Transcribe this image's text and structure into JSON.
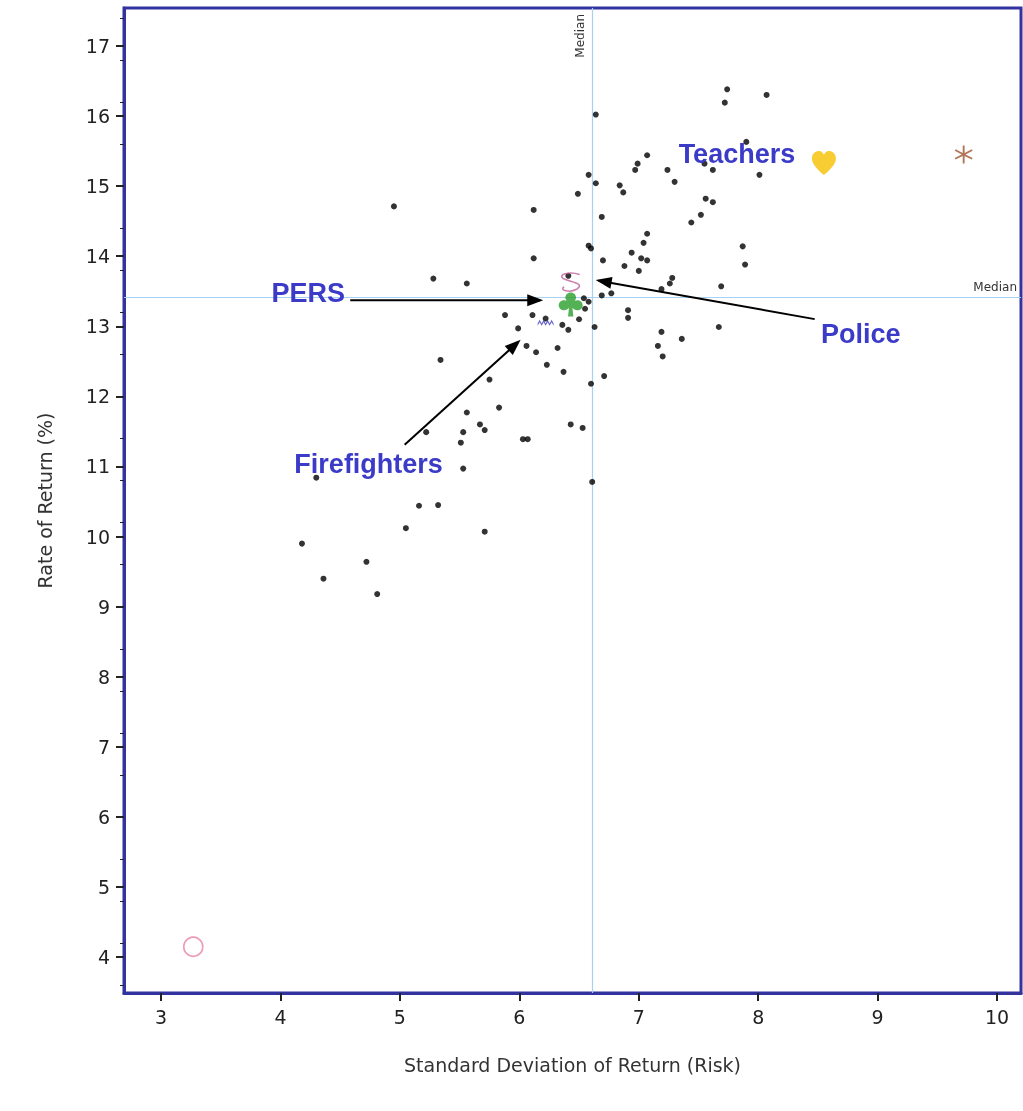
{
  "chart_data": {
    "type": "scatter",
    "xlabel": "Standard Deviation of Return (Risk)",
    "ylabel": "Rate of Return (%)",
    "xlim": [
      2.69,
      10.2
    ],
    "xticks": [
      3,
      4,
      5,
      6,
      7,
      8,
      9,
      10
    ],
    "ylim": [
      3.49,
      17.54
    ],
    "yticks": [
      4,
      5,
      6,
      7,
      8,
      9,
      10,
      11,
      12,
      13,
      14,
      15,
      16,
      17
    ],
    "grid": false,
    "series": [
      {
        "color": "#000000",
        "marker": "circle",
        "x": [
          7.74,
          7.72,
          8.07,
          6.64,
          7.9,
          7.07,
          6.99,
          6.97,
          7.24,
          7.55,
          7.62,
          8.01,
          6.58,
          6.64,
          7.3,
          6.84,
          6.87,
          6.49,
          6.12,
          7.56,
          7.62,
          6.69,
          7.52,
          7.44,
          7.07,
          7.04,
          6.58,
          6.6,
          7.87,
          6.12,
          6.7,
          6.94,
          7.02,
          7.07,
          6.88,
          7.0,
          7.89,
          7.28,
          7.26,
          7.19,
          5.56,
          6.77,
          6.69,
          6.41,
          7.69,
          6.54,
          6.58,
          6.55,
          6.5,
          6.91,
          6.91,
          5.88,
          6.11,
          6.22,
          5.99,
          6.36,
          6.41,
          6.63,
          7.67,
          7.19,
          7.36,
          6.06,
          6.14,
          6.32,
          7.16,
          7.2,
          6.23,
          6.37,
          6.71,
          5.75,
          6.6,
          5.83,
          4.95,
          5.28,
          5.34,
          5.56,
          5.22,
          5.53,
          5.67,
          5.71,
          5.51,
          6.03,
          6.07,
          6.43,
          6.53,
          5.53,
          4.3,
          6.61,
          5.16,
          5.32,
          5.05,
          5.71,
          4.18,
          4.72,
          4.36,
          4.81
        ],
        "values": [
          16.38,
          16.19,
          16.3,
          16.02,
          15.63,
          15.44,
          15.32,
          15.23,
          15.23,
          15.32,
          15.23,
          15.16,
          15.16,
          15.04,
          15.06,
          15.01,
          14.91,
          14.89,
          14.66,
          14.82,
          14.77,
          14.56,
          14.59,
          14.48,
          14.32,
          14.19,
          14.15,
          14.11,
          14.14,
          13.97,
          13.94,
          14.05,
          13.97,
          13.94,
          13.86,
          13.79,
          13.88,
          13.69,
          13.61,
          13.53,
          13.61,
          13.47,
          13.44,
          13.72,
          13.57,
          13.4,
          13.35,
          13.25,
          13.1,
          13.23,
          13.12,
          13.16,
          13.16,
          13.11,
          12.97,
          13.02,
          12.95,
          12.99,
          12.99,
          12.92,
          12.82,
          12.72,
          12.63,
          12.69,
          12.72,
          12.57,
          12.45,
          12.35,
          12.29,
          12.24,
          12.18,
          11.84,
          14.71,
          13.68,
          12.52,
          11.77,
          11.49,
          11.49,
          11.6,
          11.52,
          11.34,
          11.39,
          11.39,
          11.6,
          11.55,
          10.97,
          10.84,
          10.78,
          10.44,
          10.45,
          10.12,
          10.07,
          9.9,
          9.64,
          9.4,
          9.18
        ]
      },
      {
        "color": "#f5c000",
        "x": [
          8.55
        ],
        "values": [
          15.33
        ]
      },
      {
        "color": "#a0522d",
        "marker": "star",
        "x": [
          9.72
        ],
        "values": [
          15.45
        ]
      },
      {
        "color": "#e87fa0",
        "marker": "circle",
        "x": [
          3.27
        ],
        "values": [
          4.15
        ]
      },
      {
        "color": "#c0609a",
        "x": [
          6.43
        ],
        "values": [
          13.63
        ]
      },
      {
        "color": "#2a9d2a",
        "x": [
          6.43
        ],
        "values": [
          13.31
        ]
      },
      {
        "color": "#4040c0",
        "x": [
          6.22
        ],
        "values": [
          13.05
        ]
      }
    ],
    "ref_lines": [
      {
        "axis": "x",
        "value": 6.61,
        "label": "Median",
        "color": "#a8d0f0"
      },
      {
        "axis": "y",
        "value": 13.42,
        "label": "Median",
        "color": "#a8d0f0"
      }
    ],
    "annotations": [
      {
        "text": "Teachers",
        "x": 8.55,
        "y": 15.33
      },
      {
        "text": "PERS",
        "x": 6.2,
        "y": 13.37
      },
      "Police",
      "Firefighters"
    ]
  }
}
